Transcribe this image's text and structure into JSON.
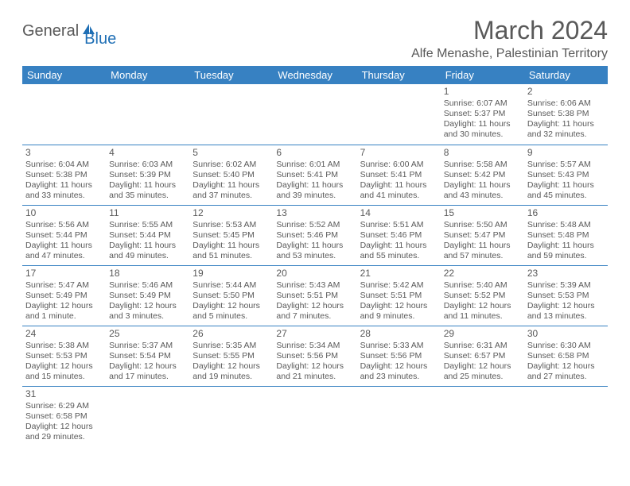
{
  "logo": {
    "text1": "General",
    "text2": "Blue"
  },
  "title": "March 2024",
  "location": "Alfe Menashe, Palestinian Territory",
  "header_bg": "#3781c2",
  "header_fg": "#ffffff",
  "text_color": "#595959",
  "rule_color": "#3781c2",
  "days": [
    "Sunday",
    "Monday",
    "Tuesday",
    "Wednesday",
    "Thursday",
    "Friday",
    "Saturday"
  ],
  "weeks": [
    [
      null,
      null,
      null,
      null,
      null,
      {
        "n": "1",
        "sr": "Sunrise: 6:07 AM",
        "ss": "Sunset: 5:37 PM",
        "d1": "Daylight: 11 hours",
        "d2": "and 30 minutes."
      },
      {
        "n": "2",
        "sr": "Sunrise: 6:06 AM",
        "ss": "Sunset: 5:38 PM",
        "d1": "Daylight: 11 hours",
        "d2": "and 32 minutes."
      }
    ],
    [
      {
        "n": "3",
        "sr": "Sunrise: 6:04 AM",
        "ss": "Sunset: 5:38 PM",
        "d1": "Daylight: 11 hours",
        "d2": "and 33 minutes."
      },
      {
        "n": "4",
        "sr": "Sunrise: 6:03 AM",
        "ss": "Sunset: 5:39 PM",
        "d1": "Daylight: 11 hours",
        "d2": "and 35 minutes."
      },
      {
        "n": "5",
        "sr": "Sunrise: 6:02 AM",
        "ss": "Sunset: 5:40 PM",
        "d1": "Daylight: 11 hours",
        "d2": "and 37 minutes."
      },
      {
        "n": "6",
        "sr": "Sunrise: 6:01 AM",
        "ss": "Sunset: 5:41 PM",
        "d1": "Daylight: 11 hours",
        "d2": "and 39 minutes."
      },
      {
        "n": "7",
        "sr": "Sunrise: 6:00 AM",
        "ss": "Sunset: 5:41 PM",
        "d1": "Daylight: 11 hours",
        "d2": "and 41 minutes."
      },
      {
        "n": "8",
        "sr": "Sunrise: 5:58 AM",
        "ss": "Sunset: 5:42 PM",
        "d1": "Daylight: 11 hours",
        "d2": "and 43 minutes."
      },
      {
        "n": "9",
        "sr": "Sunrise: 5:57 AM",
        "ss": "Sunset: 5:43 PM",
        "d1": "Daylight: 11 hours",
        "d2": "and 45 minutes."
      }
    ],
    [
      {
        "n": "10",
        "sr": "Sunrise: 5:56 AM",
        "ss": "Sunset: 5:44 PM",
        "d1": "Daylight: 11 hours",
        "d2": "and 47 minutes."
      },
      {
        "n": "11",
        "sr": "Sunrise: 5:55 AM",
        "ss": "Sunset: 5:44 PM",
        "d1": "Daylight: 11 hours",
        "d2": "and 49 minutes."
      },
      {
        "n": "12",
        "sr": "Sunrise: 5:53 AM",
        "ss": "Sunset: 5:45 PM",
        "d1": "Daylight: 11 hours",
        "d2": "and 51 minutes."
      },
      {
        "n": "13",
        "sr": "Sunrise: 5:52 AM",
        "ss": "Sunset: 5:46 PM",
        "d1": "Daylight: 11 hours",
        "d2": "and 53 minutes."
      },
      {
        "n": "14",
        "sr": "Sunrise: 5:51 AM",
        "ss": "Sunset: 5:46 PM",
        "d1": "Daylight: 11 hours",
        "d2": "and 55 minutes."
      },
      {
        "n": "15",
        "sr": "Sunrise: 5:50 AM",
        "ss": "Sunset: 5:47 PM",
        "d1": "Daylight: 11 hours",
        "d2": "and 57 minutes."
      },
      {
        "n": "16",
        "sr": "Sunrise: 5:48 AM",
        "ss": "Sunset: 5:48 PM",
        "d1": "Daylight: 11 hours",
        "d2": "and 59 minutes."
      }
    ],
    [
      {
        "n": "17",
        "sr": "Sunrise: 5:47 AM",
        "ss": "Sunset: 5:49 PM",
        "d1": "Daylight: 12 hours",
        "d2": "and 1 minute."
      },
      {
        "n": "18",
        "sr": "Sunrise: 5:46 AM",
        "ss": "Sunset: 5:49 PM",
        "d1": "Daylight: 12 hours",
        "d2": "and 3 minutes."
      },
      {
        "n": "19",
        "sr": "Sunrise: 5:44 AM",
        "ss": "Sunset: 5:50 PM",
        "d1": "Daylight: 12 hours",
        "d2": "and 5 minutes."
      },
      {
        "n": "20",
        "sr": "Sunrise: 5:43 AM",
        "ss": "Sunset: 5:51 PM",
        "d1": "Daylight: 12 hours",
        "d2": "and 7 minutes."
      },
      {
        "n": "21",
        "sr": "Sunrise: 5:42 AM",
        "ss": "Sunset: 5:51 PM",
        "d1": "Daylight: 12 hours",
        "d2": "and 9 minutes."
      },
      {
        "n": "22",
        "sr": "Sunrise: 5:40 AM",
        "ss": "Sunset: 5:52 PM",
        "d1": "Daylight: 12 hours",
        "d2": "and 11 minutes."
      },
      {
        "n": "23",
        "sr": "Sunrise: 5:39 AM",
        "ss": "Sunset: 5:53 PM",
        "d1": "Daylight: 12 hours",
        "d2": "and 13 minutes."
      }
    ],
    [
      {
        "n": "24",
        "sr": "Sunrise: 5:38 AM",
        "ss": "Sunset: 5:53 PM",
        "d1": "Daylight: 12 hours",
        "d2": "and 15 minutes."
      },
      {
        "n": "25",
        "sr": "Sunrise: 5:37 AM",
        "ss": "Sunset: 5:54 PM",
        "d1": "Daylight: 12 hours",
        "d2": "and 17 minutes."
      },
      {
        "n": "26",
        "sr": "Sunrise: 5:35 AM",
        "ss": "Sunset: 5:55 PM",
        "d1": "Daylight: 12 hours",
        "d2": "and 19 minutes."
      },
      {
        "n": "27",
        "sr": "Sunrise: 5:34 AM",
        "ss": "Sunset: 5:56 PM",
        "d1": "Daylight: 12 hours",
        "d2": "and 21 minutes."
      },
      {
        "n": "28",
        "sr": "Sunrise: 5:33 AM",
        "ss": "Sunset: 5:56 PM",
        "d1": "Daylight: 12 hours",
        "d2": "and 23 minutes."
      },
      {
        "n": "29",
        "sr": "Sunrise: 6:31 AM",
        "ss": "Sunset: 6:57 PM",
        "d1": "Daylight: 12 hours",
        "d2": "and 25 minutes."
      },
      {
        "n": "30",
        "sr": "Sunrise: 6:30 AM",
        "ss": "Sunset: 6:58 PM",
        "d1": "Daylight: 12 hours",
        "d2": "and 27 minutes."
      }
    ],
    [
      {
        "n": "31",
        "sr": "Sunrise: 6:29 AM",
        "ss": "Sunset: 6:58 PM",
        "d1": "Daylight: 12 hours",
        "d2": "and 29 minutes."
      },
      null,
      null,
      null,
      null,
      null,
      null
    ]
  ]
}
